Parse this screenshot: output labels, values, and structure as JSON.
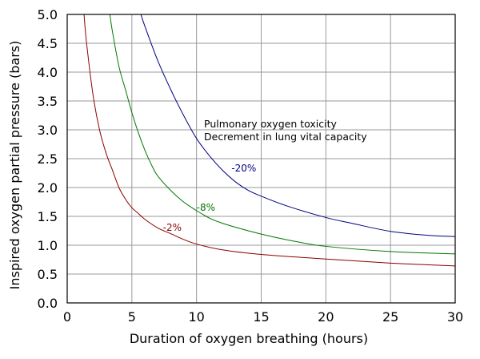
{
  "chart_data": {
    "type": "line",
    "title": "",
    "xlabel": "Duration of oxygen breathing (hours)",
    "ylabel": "Inspired oxygen partial pressure (bars)",
    "xlim": [
      0,
      30
    ],
    "ylim": [
      0,
      5
    ],
    "xticks": [
      "0",
      "5",
      "10",
      "15",
      "20",
      "25",
      "30"
    ],
    "xtick_values": [
      0,
      5,
      10,
      15,
      20,
      25,
      30
    ],
    "yticks": [
      "0.0",
      "0.5",
      "1.0",
      "1.5",
      "2.0",
      "2.5",
      "3.0",
      "3.5",
      "4.0",
      "4.5",
      "5.0"
    ],
    "ytick_values": [
      0,
      0.5,
      1.0,
      1.5,
      2.0,
      2.5,
      3.0,
      3.5,
      4.0,
      4.5,
      5.0
    ],
    "grid": true,
    "annotations": [
      "Pulmonary oxygen toxicity",
      "Decrement in lung vital capacity"
    ],
    "series": [
      {
        "label": "-2%",
        "color": "#8b0000",
        "x": [
          1.3,
          1.5,
          2.0,
          2.5,
          3.0,
          3.5,
          4.0,
          4.5,
          5.0,
          5.5,
          6.0,
          7.0,
          8.0,
          9.0,
          10.0,
          12.0,
          15.0,
          20.0,
          25.0,
          30.0
        ],
        "y": [
          5.0,
          4.5,
          3.6,
          3.0,
          2.6,
          2.3,
          2.0,
          1.8,
          1.65,
          1.55,
          1.45,
          1.3,
          1.2,
          1.1,
          1.02,
          0.92,
          0.84,
          0.76,
          0.69,
          0.64
        ]
      },
      {
        "label": "-8%",
        "color": "#007700",
        "x": [
          3.3,
          3.5,
          4.0,
          4.5,
          5.0,
          5.5,
          6.0,
          6.5,
          7.0,
          8.0,
          9.0,
          10.0,
          11.0,
          12.0,
          14.0,
          16.0,
          18.0,
          20.0,
          25.0,
          30.0
        ],
        "y": [
          5.0,
          4.7,
          4.1,
          3.7,
          3.3,
          2.95,
          2.65,
          2.4,
          2.2,
          1.95,
          1.75,
          1.6,
          1.47,
          1.38,
          1.25,
          1.14,
          1.05,
          0.98,
          0.89,
          0.85
        ]
      },
      {
        "label": "-20%",
        "color": "#000080",
        "x": [
          5.7,
          6.0,
          7.0,
          8.0,
          9.0,
          10.0,
          11.0,
          12.0,
          13.0,
          14.0,
          15.0,
          17.0,
          20.0,
          22.0,
          25.0,
          28.0,
          30.0
        ],
        "y": [
          5.0,
          4.8,
          4.2,
          3.7,
          3.25,
          2.85,
          2.55,
          2.3,
          2.1,
          1.95,
          1.85,
          1.68,
          1.48,
          1.38,
          1.24,
          1.17,
          1.15
        ]
      }
    ]
  }
}
